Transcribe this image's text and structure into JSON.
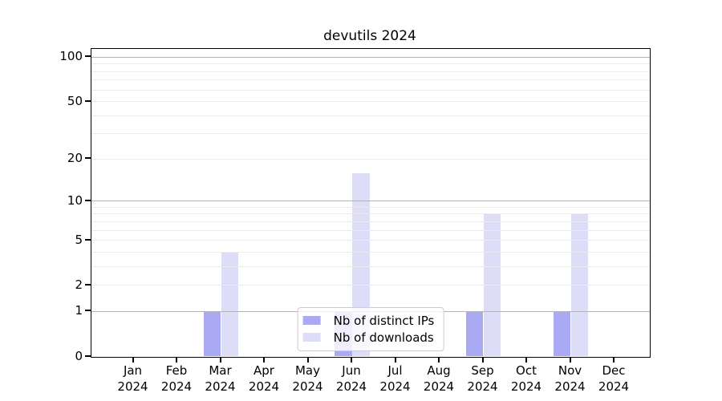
{
  "title": "devutils 2024",
  "chart_data": {
    "type": "bar",
    "title": "devutils 2024",
    "categories": [
      "Jan",
      "Feb",
      "Mar",
      "Apr",
      "May",
      "Jun",
      "Jul",
      "Aug",
      "Sep",
      "Oct",
      "Nov",
      "Dec"
    ],
    "category_year": "2024",
    "series": [
      {
        "name": "Nb of distinct IPs",
        "color": "#a9a9f4",
        "values": [
          0,
          0,
          1,
          0,
          0,
          1,
          0,
          0,
          1,
          0,
          1,
          0
        ]
      },
      {
        "name": "Nb of downloads",
        "color": "#ddddf8",
        "values": [
          0,
          0,
          4,
          0,
          0,
          16,
          0,
          0,
          8,
          0,
          8,
          0
        ]
      }
    ],
    "xlabel": "",
    "ylabel": "",
    "yscale": "log1p",
    "ylim": [
      0,
      114
    ],
    "yticks_labeled": [
      0,
      1,
      2,
      5,
      10,
      20,
      50,
      100
    ],
    "grid": true,
    "grid_major_values": [
      1,
      10,
      100
    ],
    "grid_minor_values": [
      2,
      3,
      4,
      5,
      6,
      7,
      8,
      9,
      20,
      30,
      40,
      50,
      60,
      70,
      80,
      90
    ],
    "legend_position": "lower center",
    "colors": {
      "grid_major": "#b3b3b3",
      "grid_minor": "#eaeaea",
      "spine": "#000000",
      "text": "#000000",
      "legend_border": "#cccccc",
      "background": "#ffffff"
    }
  }
}
